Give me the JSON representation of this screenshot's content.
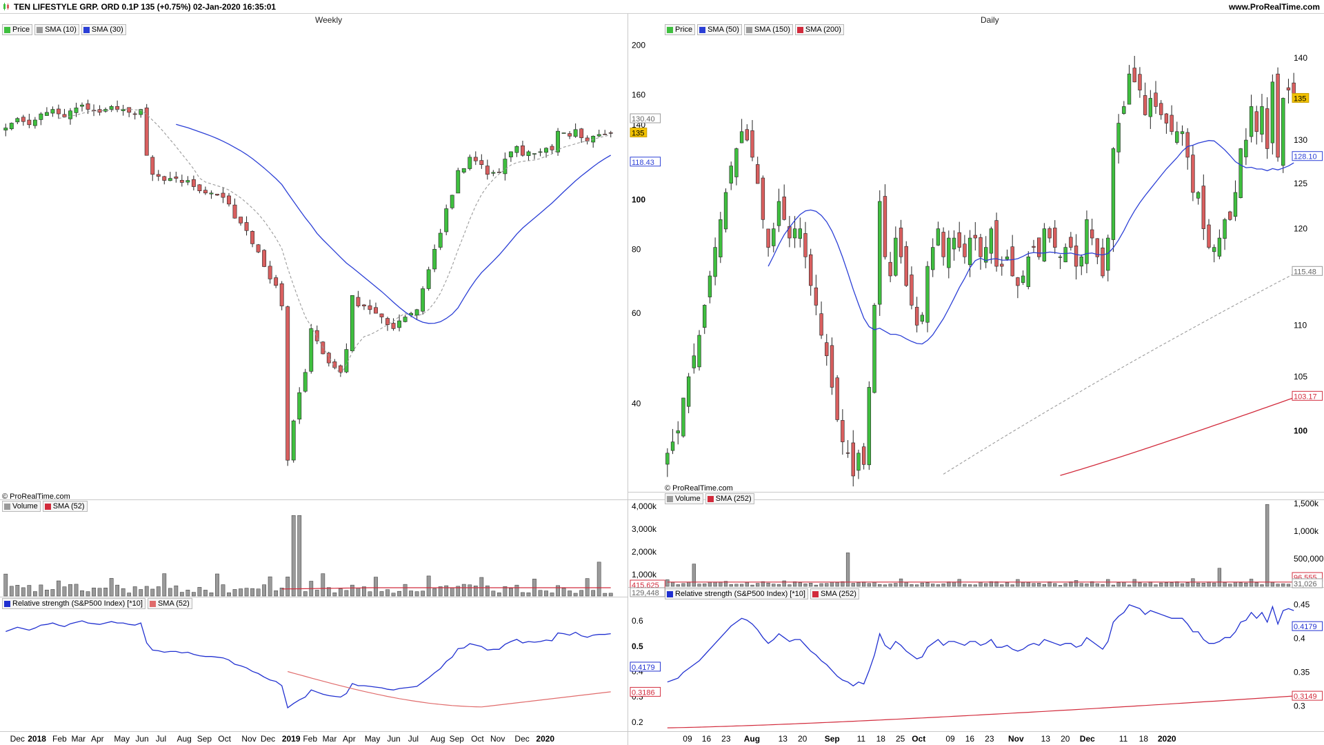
{
  "header": {
    "title": "TEN LIFESTYLE GRP. ORD 0.1P 135 (+0.75%) 02-Jan-2020 16:35:01",
    "site": "www.ProRealTime.com",
    "left_label": "Weekly",
    "right_label": "Daily",
    "copyright": "© ProRealTime.com"
  },
  "colors": {
    "up": "#3fbf3f",
    "down": "#d95f5f",
    "sma_blue": "#2b3fd6",
    "sma_red": "#d22b3c",
    "sma_gray": "#9a9a9a",
    "rs_blue": "#1f2fd0",
    "rs_sma_weekly": "#e06b6b",
    "label_yellow": "#f2c200"
  },
  "weekly": {
    "price_legend": [
      {
        "label": "Price",
        "color": "#3fbf3f"
      },
      {
        "label": "SMA (10)",
        "color": "#9a9a9a"
      },
      {
        "label": "SMA (30)",
        "color": "#2b3fd6"
      }
    ],
    "volume_legend": [
      {
        "label": "Volume",
        "color": "#9a9a9a"
      },
      {
        "label": "SMA (52)",
        "color": "#d22b3c"
      }
    ],
    "rs_legend": [
      {
        "label": "Relative strength (S&P500 Index) [*10]",
        "color": "#1f2fd0"
      },
      {
        "label": "SMA (52)",
        "color": "#e06b6b"
      }
    ],
    "price_axis": [
      "200",
      "160",
      "140",
      "100",
      "80",
      "60",
      "40"
    ],
    "price_tags": [
      {
        "text": "135",
        "kind": "price"
      },
      {
        "text": "130.40",
        "kind": "sma10"
      },
      {
        "text": "118.43",
        "kind": "sma30"
      }
    ],
    "volume_axis": [
      "4,000k",
      "3,000k",
      "2,000k",
      "1,000k"
    ],
    "volume_tags": [
      {
        "text": "415,625",
        "kind": "sma"
      },
      {
        "text": "129,448",
        "kind": "vol"
      }
    ],
    "rs_axis": [
      "0.6",
      "0.5",
      "0.4",
      "0.3",
      "0.2"
    ],
    "rs_tags": [
      {
        "text": "0.4179",
        "kind": "rs"
      },
      {
        "text": "0.3186",
        "kind": "sma"
      }
    ],
    "x_labels": [
      "Dec",
      "2018",
      "Feb",
      "Mar",
      "Apr",
      "May",
      "Jun",
      "Jul",
      "Aug",
      "Sep",
      "Oct",
      "Nov",
      "Dec",
      "2019",
      "Feb",
      "Mar",
      "Apr",
      "May",
      "Jun",
      "Jul",
      "Aug",
      "Sep",
      "Oct",
      "Nov",
      "Dec",
      "2020"
    ],
    "x_bold": [
      "2018",
      "2019",
      "2020"
    ]
  },
  "daily": {
    "price_legend": [
      {
        "label": "Price",
        "color": "#3fbf3f"
      },
      {
        "label": "SMA (50)",
        "color": "#2b3fd6"
      },
      {
        "label": "SMA (150)",
        "color": "#9a9a9a"
      },
      {
        "label": "SMA (200)",
        "color": "#d22b3c"
      }
    ],
    "volume_legend": [
      {
        "label": "Volume",
        "color": "#9a9a9a"
      },
      {
        "label": "SMA (252)",
        "color": "#d22b3c"
      }
    ],
    "rs_legend": [
      {
        "label": "Relative strength (S&P500 Index) [*10]",
        "color": "#1f2fd0"
      },
      {
        "label": "SMA (252)",
        "color": "#d22b3c"
      }
    ],
    "price_axis": [
      "140",
      "135",
      "130",
      "125",
      "120",
      "110",
      "105",
      "100"
    ],
    "price_tags": [
      {
        "text": "135",
        "kind": "price"
      },
      {
        "text": "128.10",
        "kind": "sma50"
      },
      {
        "text": "115.48",
        "kind": "sma150"
      },
      {
        "text": "103.17",
        "kind": "sma200"
      }
    ],
    "volume_axis": [
      "1,500k",
      "1,000k",
      "500,000"
    ],
    "volume_tags": [
      {
        "text": "96,555",
        "kind": "sma"
      },
      {
        "text": "31,026",
        "kind": "vol"
      }
    ],
    "rs_axis": [
      "0.45",
      "0.4",
      "0.35",
      "0.3"
    ],
    "rs_tags": [
      {
        "text": "0.4179",
        "kind": "rs"
      },
      {
        "text": "0.3149",
        "kind": "sma"
      }
    ],
    "x_labels": [
      "09",
      "16",
      "23",
      "Aug",
      "13",
      "20",
      "Sep",
      "11",
      "18",
      "25",
      "Oct",
      "09",
      "16",
      "23",
      "Nov",
      "13",
      "20",
      "Dec",
      "11",
      "18",
      "2020"
    ],
    "x_bold": [
      "Aug",
      "Sep",
      "Oct",
      "Nov",
      "Dec",
      "2020"
    ]
  },
  "chart_data": [
    {
      "type": "candlestick",
      "title": "TEN LIFESTYLE GRP. ORD 0.1P 135 (+0.75%) 02-Jan-2020 16:35:01",
      "timeframe": "Weekly",
      "scale": "log",
      "ylim": [
        28,
        210
      ],
      "close": [
        138,
        141,
        144,
        142,
        140,
        143,
        147,
        148,
        150,
        147,
        145,
        149,
        151,
        153,
        150,
        149,
        148,
        150,
        152,
        150,
        150,
        148,
        147,
        150,
        122,
        112,
        111,
        109,
        110,
        110,
        108,
        109,
        106,
        104,
        103,
        103,
        102,
        101,
        98,
        92,
        90,
        87,
        82,
        79,
        74,
        70,
        68,
        62,
        31,
        37,
        42,
        46,
        56,
        53,
        50,
        48,
        47,
        46,
        51,
        65,
        62,
        62,
        61,
        60,
        59,
        57,
        56,
        58,
        59,
        60,
        61,
        67,
        73,
        80,
        86,
        96,
        102,
        114,
        115,
        121,
        119,
        117,
        112,
        113,
        113,
        120,
        124,
        127,
        122,
        124,
        123,
        124,
        126,
        125,
        136,
        135,
        133,
        137,
        132,
        130,
        133,
        134,
        134,
        135
      ]
    },
    {
      "type": "candlestick",
      "title": "",
      "timeframe": "Daily",
      "scale": "log",
      "ylim": [
        96,
        143
      ],
      "close": [
        98,
        99,
        100,
        103,
        105,
        107,
        109,
        112,
        115,
        118,
        121,
        124,
        127,
        129,
        131,
        130,
        128,
        125,
        121,
        118,
        120,
        123,
        121,
        119,
        120,
        120,
        117,
        114,
        112,
        109,
        107,
        104,
        101,
        99,
        98,
        96,
        98,
        97,
        104,
        112,
        123,
        117,
        115,
        119,
        117,
        114,
        112,
        110,
        111,
        116,
        118,
        120,
        117,
        119,
        119,
        118,
        117,
        119,
        119,
        117,
        118,
        120,
        116,
        116,
        117,
        115,
        114,
        115,
        117,
        118,
        117,
        120,
        119,
        118,
        117,
        118,
        118,
        116,
        117,
        121,
        119,
        117,
        115,
        119,
        129,
        132,
        134,
        138,
        137,
        136,
        133,
        135,
        134,
        133,
        132,
        131,
        131,
        131,
        128,
        124,
        124,
        120,
        118,
        118,
        119,
        121,
        121,
        124,
        129,
        130,
        134,
        131,
        134,
        129,
        137,
        128,
        135,
        136,
        135
      ]
    }
  ]
}
